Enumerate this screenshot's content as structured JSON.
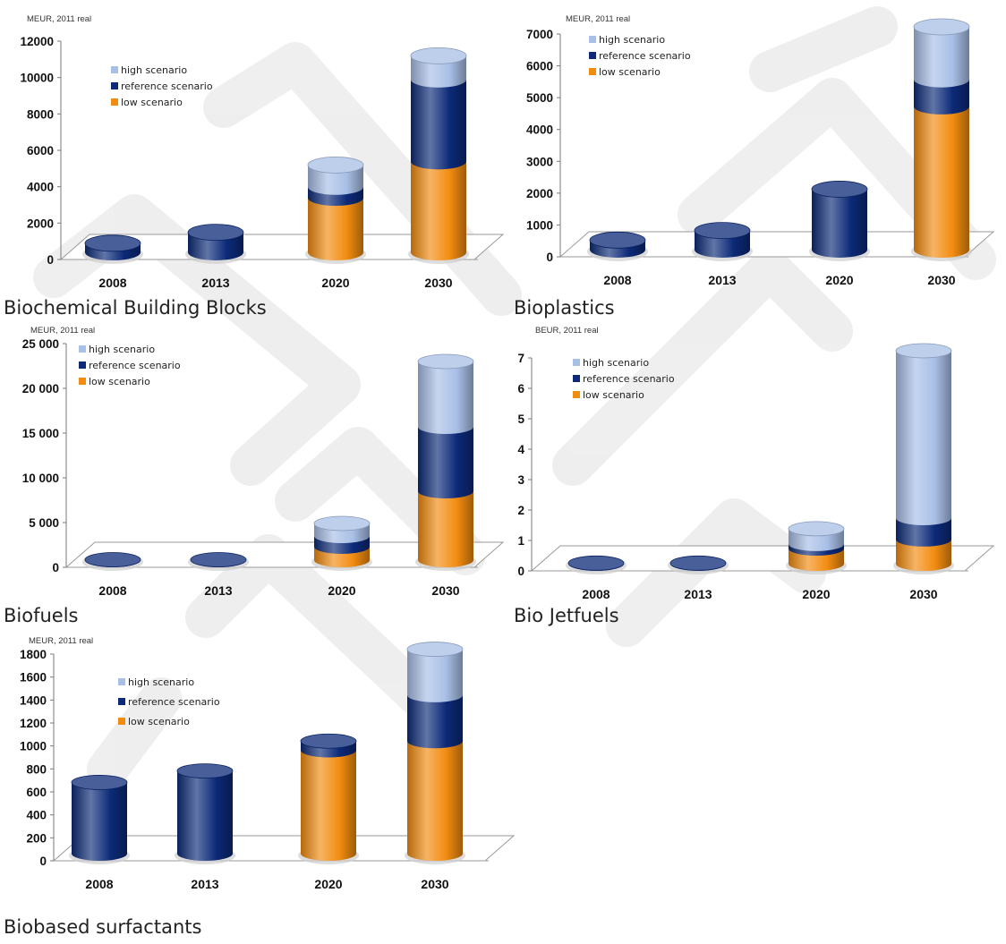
{
  "colors": {
    "high": "#a8bfe6",
    "reference": "#0c2a78",
    "low": "#f28c10",
    "floor": "#cfcfcf",
    "watermark": "#e9e9e9"
  },
  "chart_data": [
    {
      "type": "bar",
      "title": "Biochemical Building Blocks",
      "unit_label": "MEUR, 2011 real",
      "categories": [
        "2008",
        "2013",
        "2020",
        "2030"
      ],
      "yticks": [
        "0",
        "2000",
        "4000",
        "6000",
        "8000",
        "10000",
        "12000"
      ],
      "ylim": [
        0,
        12000
      ],
      "stacked": true,
      "legend": [
        "high scenario",
        "reference scenario",
        "low scenario"
      ],
      "legend_position": "top-left",
      "series": [
        {
          "name": "low scenario",
          "values": [
            0,
            0,
            3000,
            5000
          ]
        },
        {
          "name": "reference scenario",
          "values": [
            500,
            1100,
            600,
            4500
          ]
        },
        {
          "name": "high scenario",
          "values": [
            0,
            0,
            1200,
            1300
          ]
        }
      ]
    },
    {
      "type": "bar",
      "title": "Bioplastics",
      "unit_label": "MEUR, 2011 real",
      "categories": [
        "2008",
        "2013",
        "2020",
        "2030"
      ],
      "yticks": [
        "0",
        "1000",
        "2000",
        "3000",
        "4000",
        "5000",
        "6000",
        "7000"
      ],
      "ylim": [
        0,
        7000
      ],
      "stacked": true,
      "legend": [
        "high scenario",
        "reference scenario",
        "low scenario"
      ],
      "legend_position": "top-left",
      "series": [
        {
          "name": "low scenario",
          "values": [
            0,
            0,
            0,
            4500
          ]
        },
        {
          "name": "reference scenario",
          "values": [
            300,
            600,
            1900,
            850
          ]
        },
        {
          "name": "high scenario",
          "values": [
            0,
            0,
            0,
            1650
          ]
        }
      ]
    },
    {
      "type": "bar",
      "title": "Biofuels",
      "unit_label": "MEUR, 2011 real",
      "categories": [
        "2008",
        "2013",
        "2020",
        "2030"
      ],
      "yticks": [
        "0",
        "5 000",
        "10 000",
        "15 000",
        "20 000",
        "25 000"
      ],
      "ylim": [
        0,
        25000
      ],
      "stacked": true,
      "legend": [
        "high scenario",
        "reference scenario",
        "low scenario"
      ],
      "legend_position": "top-left",
      "series": [
        {
          "name": "low scenario",
          "values": [
            0,
            0,
            1500,
            7700
          ]
        },
        {
          "name": "reference scenario",
          "values": [
            50,
            50,
            1200,
            7200
          ]
        },
        {
          "name": "high scenario",
          "values": [
            0,
            0,
            1400,
            7300
          ]
        }
      ]
    },
    {
      "type": "bar",
      "title": "Bio Jetfuels",
      "unit_label": "BEUR, 2011 real",
      "categories": [
        "2008",
        "2013",
        "2020",
        "2030"
      ],
      "yticks": [
        "0",
        "1",
        "2",
        "3",
        "4",
        "5",
        "6",
        "7"
      ],
      "ylim": [
        0,
        7
      ],
      "stacked": true,
      "legend": [
        "high scenario",
        "reference scenario",
        "low scenario"
      ],
      "legend_position": "top-left",
      "series": [
        {
          "name": "low scenario",
          "values": [
            0,
            0,
            0.5,
            0.8
          ]
        },
        {
          "name": "reference scenario",
          "values": [
            0.02,
            0.02,
            0.15,
            0.7
          ]
        },
        {
          "name": "high scenario",
          "values": [
            0,
            0,
            0.5,
            5.5
          ]
        }
      ]
    },
    {
      "type": "bar",
      "title": "Biobased surfactants",
      "unit_label": "MEUR, 2011 real",
      "categories": [
        "2008",
        "2013",
        "2020",
        "2030"
      ],
      "yticks": [
        "0",
        "200",
        "400",
        "600",
        "800",
        "1000",
        "1200",
        "1400",
        "1600",
        "1800"
      ],
      "ylim": [
        0,
        1800
      ],
      "stacked": true,
      "legend": [
        "high scenario",
        "reference scenario",
        "low scenario"
      ],
      "legend_position": "top-left",
      "series": [
        {
          "name": "low scenario",
          "values": [
            0,
            0,
            900,
            980
          ]
        },
        {
          "name": "reference scenario",
          "values": [
            620,
            720,
            80,
            400
          ]
        },
        {
          "name": "high scenario",
          "values": [
            0,
            0,
            0,
            400
          ]
        }
      ]
    }
  ]
}
